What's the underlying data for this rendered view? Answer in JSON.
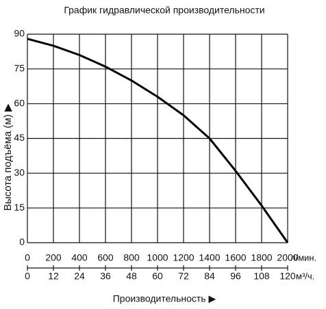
{
  "chart_data": {
    "type": "line",
    "title": "График гидравлической производительности",
    "ylabel": "Высота подъёма (м) ▶",
    "xlabel": "Производительность ▶",
    "x_unit": "л/мин.",
    "x2_unit": "м³/ч.",
    "x": [
      0,
      200,
      400,
      600,
      800,
      1000,
      1200,
      1400,
      1600,
      1800,
      2000
    ],
    "values": [
      88,
      85,
      81,
      76,
      70,
      63,
      55,
      45,
      31,
      16,
      0
    ],
    "color": "#000000",
    "xlim": [
      0,
      2000
    ],
    "xticks": [
      0,
      200,
      400,
      600,
      800,
      1000,
      1200,
      1400,
      1600,
      1800,
      2000
    ],
    "x2lim": [
      0,
      120
    ],
    "x2ticks": [
      0,
      12,
      24,
      36,
      48,
      60,
      72,
      84,
      96,
      108,
      120
    ],
    "ylim": [
      0,
      90
    ],
    "yticks": [
      0,
      15,
      30,
      45,
      60,
      75,
      90
    ],
    "grid": true
  }
}
